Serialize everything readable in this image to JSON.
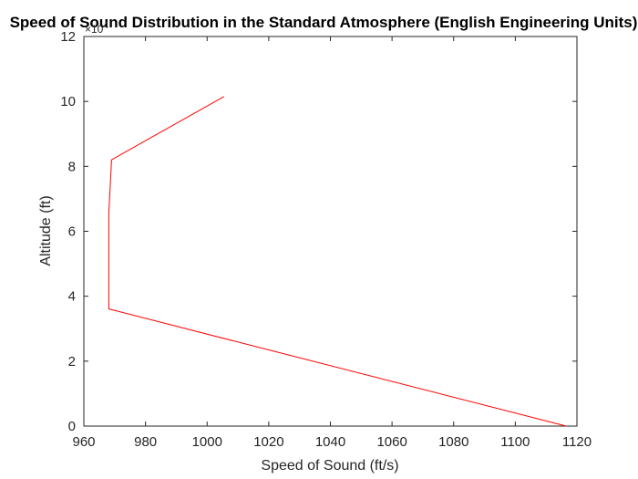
{
  "chart_data": {
    "type": "line",
    "title": "Speed of Sound Distribution in the Standard Atmosphere (English Engineering Units)",
    "xlabel": "Speed of Sound (ft/s)",
    "ylabel": "Altitude (ft)",
    "xlim": [
      960,
      1120
    ],
    "ylim": [
      0,
      120000
    ],
    "x_ticks": [
      960,
      980,
      1000,
      1020,
      1040,
      1060,
      1080,
      1100,
      1120
    ],
    "y_ticks": [
      0,
      2,
      4,
      6,
      8,
      10,
      12
    ],
    "y_exponent_label": "×10",
    "y_exponent_power": "4",
    "grid": false,
    "line_color": "#ff0000",
    "series": [
      {
        "x": [
          1116.5,
          968.1,
          968.1,
          968.1,
          969.0,
          1005.5
        ],
        "y": [
          0,
          36089,
          36500,
          65617,
          82000,
          101500
        ]
      }
    ]
  }
}
